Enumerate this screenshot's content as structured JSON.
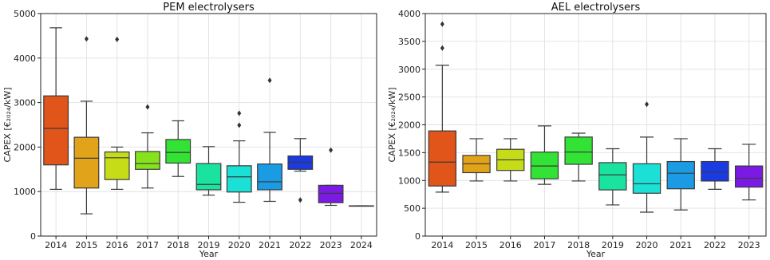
{
  "chart_data": [
    {
      "type": "box",
      "title": "PEM electrolysers",
      "xlabel": "Year",
      "ylabel": "CAPEX [€₂₀₂₄/kW]",
      "ylim": [
        0,
        5000
      ],
      "yticks": [
        "0",
        "1000",
        "2000",
        "3000",
        "4000",
        "5000"
      ],
      "categories": [
        "2014",
        "2015",
        "2016",
        "2017",
        "2018",
        "2019",
        "2020",
        "2021",
        "2022",
        "2023",
        "2024"
      ],
      "grid": true,
      "boxes": [
        {
          "year": "2014",
          "whislo": 1050,
          "q1": 1600,
          "med": 2420,
          "q3": 3150,
          "whishi": 4680,
          "fliers": [],
          "color": "#e1541a"
        },
        {
          "year": "2015",
          "whislo": 500,
          "q1": 1080,
          "med": 1750,
          "q3": 2220,
          "whishi": 3030,
          "fliers": [
            4430
          ],
          "color": "#e0a31a"
        },
        {
          "year": "2016",
          "whislo": 1050,
          "q1": 1270,
          "med": 1760,
          "q3": 1890,
          "whishi": 2000,
          "fliers": [
            4420
          ],
          "color": "#c6dc17"
        },
        {
          "year": "2017",
          "whislo": 1080,
          "q1": 1500,
          "med": 1630,
          "q3": 1900,
          "whishi": 2320,
          "fliers": [
            2900
          ],
          "color": "#86e21c"
        },
        {
          "year": "2018",
          "whislo": 1340,
          "q1": 1640,
          "med": 1880,
          "q3": 2170,
          "whishi": 2590,
          "fliers": [],
          "color": "#32e234"
        },
        {
          "year": "2019",
          "whislo": 920,
          "q1": 1040,
          "med": 1160,
          "q3": 1630,
          "whishi": 2010,
          "fliers": [],
          "color": "#1ae3a0"
        },
        {
          "year": "2020",
          "whislo": 760,
          "q1": 990,
          "med": 1330,
          "q3": 1580,
          "whishi": 2140,
          "fliers": [
            2490,
            2760
          ],
          "color": "#1ae0d6"
        },
        {
          "year": "2021",
          "whislo": 780,
          "q1": 1040,
          "med": 1220,
          "q3": 1620,
          "whishi": 2330,
          "fliers": [
            3500
          ],
          "color": "#1a9be3"
        },
        {
          "year": "2022",
          "whislo": 1460,
          "q1": 1500,
          "med": 1660,
          "q3": 1800,
          "whishi": 2190,
          "fliers": [
            810
          ],
          "color": "#1a3be3"
        },
        {
          "year": "2023",
          "whislo": 690,
          "q1": 750,
          "med": 960,
          "q3": 1140,
          "whishi": 1140,
          "fliers": [
            1930
          ],
          "color": "#7a1ae3"
        },
        {
          "year": "2024",
          "whislo": 680,
          "q1": 680,
          "med": 680,
          "q3": 680,
          "whishi": 680,
          "fliers": [],
          "color": "#a01ae3"
        }
      ]
    },
    {
      "type": "box",
      "title": "AEL electrolysers",
      "xlabel": "Year",
      "ylabel": "CAPEX [€₂₀₂₄/kW]",
      "ylim": [
        0,
        4000
      ],
      "yticks": [
        "0",
        "500",
        "1000",
        "1500",
        "2000",
        "2500",
        "3000",
        "3500",
        "4000"
      ],
      "categories": [
        "2014",
        "2015",
        "2016",
        "2017",
        "2018",
        "2019",
        "2020",
        "2021",
        "2022",
        "2023"
      ],
      "grid": true,
      "boxes": [
        {
          "year": "2014",
          "whislo": 790,
          "q1": 900,
          "med": 1330,
          "q3": 1890,
          "whishi": 3070,
          "fliers": [
            3380,
            3810
          ],
          "color": "#e1541a"
        },
        {
          "year": "2015",
          "whislo": 990,
          "q1": 1140,
          "med": 1300,
          "q3": 1450,
          "whishi": 1750,
          "fliers": [],
          "color": "#e0a31a"
        },
        {
          "year": "2016",
          "whislo": 990,
          "q1": 1180,
          "med": 1370,
          "q3": 1560,
          "whishi": 1750,
          "fliers": [],
          "color": "#c6dc17"
        },
        {
          "year": "2017",
          "whislo": 930,
          "q1": 1030,
          "med": 1260,
          "q3": 1510,
          "whishi": 1980,
          "fliers": [],
          "color": "#32e234"
        },
        {
          "year": "2018",
          "whislo": 990,
          "q1": 1290,
          "med": 1510,
          "q3": 1780,
          "whishi": 1850,
          "fliers": [],
          "color": "#32e234"
        },
        {
          "year": "2019",
          "whislo": 560,
          "q1": 830,
          "med": 1100,
          "q3": 1320,
          "whishi": 1570,
          "fliers": [],
          "color": "#1ae3a0"
        },
        {
          "year": "2020",
          "whislo": 430,
          "q1": 770,
          "med": 940,
          "q3": 1300,
          "whishi": 1780,
          "fliers": [
            2370
          ],
          "color": "#1ae0d6"
        },
        {
          "year": "2021",
          "whislo": 470,
          "q1": 850,
          "med": 1130,
          "q3": 1340,
          "whishi": 1750,
          "fliers": [],
          "color": "#1a9be3"
        },
        {
          "year": "2022",
          "whislo": 840,
          "q1": 990,
          "med": 1150,
          "q3": 1340,
          "whishi": 1570,
          "fliers": [],
          "color": "#1a3be3"
        },
        {
          "year": "2023",
          "whislo": 650,
          "q1": 880,
          "med": 1040,
          "q3": 1260,
          "whishi": 1650,
          "fliers": [],
          "color": "#7a1ae3"
        }
      ]
    }
  ]
}
